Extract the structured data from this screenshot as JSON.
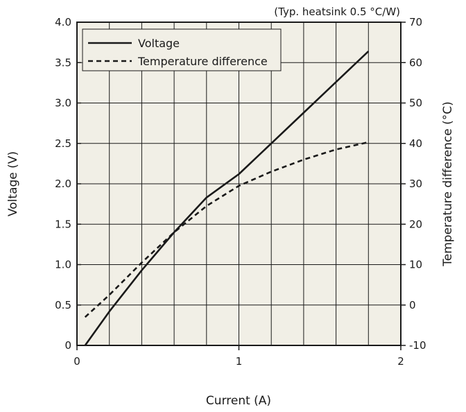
{
  "chart_data": {
    "type": "line",
    "note": "(Typ. heatsink 0.5 °C/W)",
    "xlabel": "Current (A)",
    "ylabel": "Voltage (V)",
    "y2label": "Temperature difference (°C)",
    "xlim": [
      0,
      2
    ],
    "ylim": [
      0,
      4
    ],
    "y2lim": [
      -10,
      70
    ],
    "x_ticks": [
      "0",
      "1",
      "2"
    ],
    "y_ticks": [
      "0",
      "0.5",
      "1.0",
      "1.5",
      "2.0",
      "2.5",
      "3.0",
      "3.5",
      "4.0"
    ],
    "y2_ticks": [
      "-10",
      "0",
      "10",
      "20",
      "30",
      "40",
      "50",
      "60",
      "70"
    ],
    "grid": true,
    "legend_position": "top-left",
    "series": [
      {
        "name": "Voltage",
        "axis": "left",
        "style": "solid",
        "color": "#1a1a1a",
        "x": [
          0.05,
          0.2,
          0.4,
          0.6,
          0.8,
          1.0,
          1.2,
          1.4,
          1.6,
          1.8
        ],
        "y": [
          0.0,
          0.42,
          0.93,
          1.4,
          1.83,
          2.12,
          2.5,
          2.88,
          3.26,
          3.64
        ]
      },
      {
        "name": "Temperature difference",
        "axis": "right",
        "style": "dashed",
        "color": "#1a1a1a",
        "x": [
          0.05,
          0.2,
          0.4,
          0.6,
          0.8,
          1.0,
          1.2,
          1.4,
          1.6,
          1.8
        ],
        "y": [
          -3.0,
          2.5,
          10.5,
          18.0,
          24.5,
          29.5,
          33.0,
          36.0,
          38.5,
          40.3
        ]
      }
    ],
    "colors": {
      "plot_background": "#f1efe6",
      "grid": "#1a1a1a",
      "line": "#1a1a1a"
    }
  }
}
